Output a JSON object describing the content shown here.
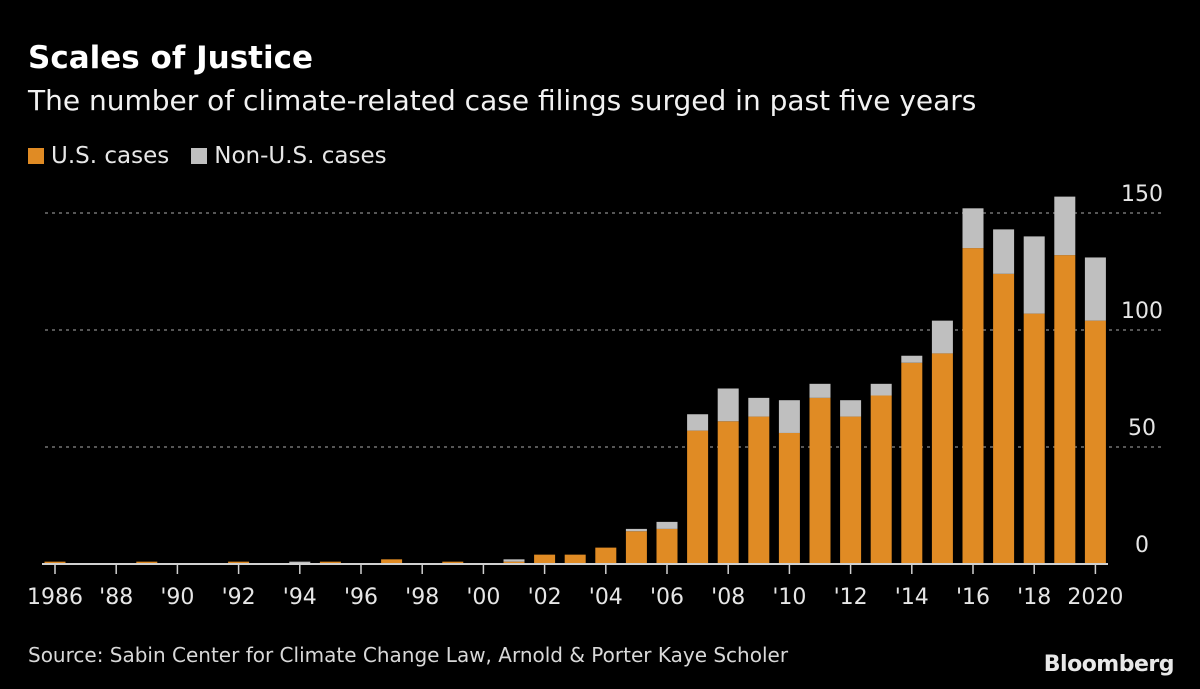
{
  "chart_data": {
    "type": "bar",
    "stacked": true,
    "title": "Scales of Justice",
    "subtitle": "The number of climate-related case filings surged in past five years",
    "years": [
      1986,
      1987,
      1988,
      1989,
      1990,
      1991,
      1992,
      1993,
      1994,
      1995,
      1996,
      1997,
      1998,
      1999,
      2000,
      2001,
      2002,
      2003,
      2004,
      2005,
      2006,
      2007,
      2008,
      2009,
      2010,
      2011,
      2012,
      2013,
      2014,
      2015,
      2016,
      2017,
      2018,
      2019,
      2020
    ],
    "series": [
      {
        "name": "U.S. cases",
        "color": "#E08B24",
        "values": [
          1,
          0,
          0,
          1,
          0,
          0,
          1,
          0,
          0,
          1,
          0,
          2,
          0,
          1,
          0,
          1,
          4,
          4,
          7,
          14,
          15,
          57,
          61,
          63,
          56,
          71,
          63,
          72,
          86,
          90,
          135,
          124,
          107,
          132,
          104
        ]
      },
      {
        "name": "Non-U.S. cases",
        "color": "#BFBFBF",
        "values": [
          0,
          0,
          0,
          0,
          0,
          0,
          0,
          0,
          1,
          0,
          0,
          0,
          0,
          0,
          0,
          1,
          0,
          0,
          0,
          1,
          3,
          7,
          14,
          8,
          14,
          6,
          7,
          5,
          3,
          14,
          17,
          19,
          33,
          25,
          27
        ]
      }
    ],
    "xtick_labels": [
      "1986",
      "'88",
      "'90",
      "'92",
      "'94",
      "'96",
      "'98",
      "'00",
      "'02",
      "'04",
      "'06",
      "'08",
      "'10",
      "'12",
      "'14",
      "'16",
      "'18",
      "2020"
    ],
    "ytick_labels": [
      "0",
      "50",
      "100",
      "150"
    ],
    "yticks": [
      0,
      50,
      100,
      150
    ],
    "ylim": [
      0,
      160
    ],
    "grid": true,
    "yaxis_side": "right",
    "legend_position": "top-left"
  },
  "source": "Source: Sabin Center for Climate Change Law, Arnold & Porter Kaye Scholer",
  "logo": "Bloomberg"
}
